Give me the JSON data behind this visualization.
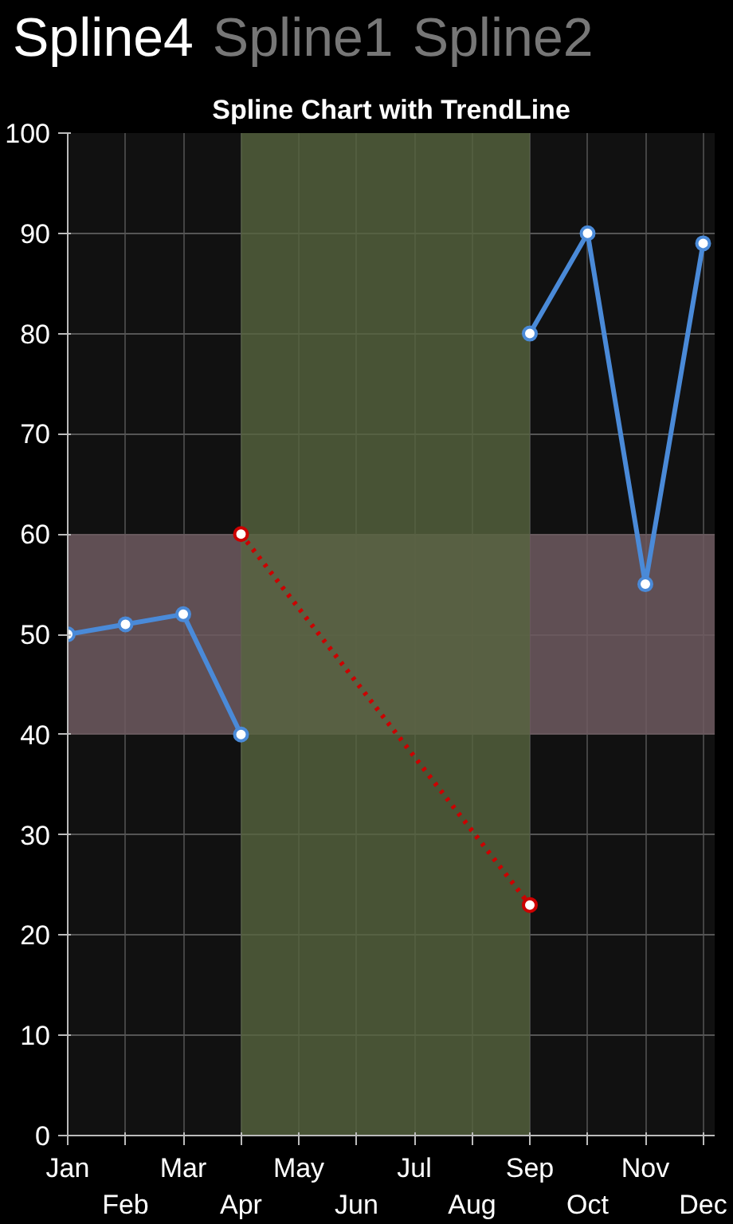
{
  "chart_data": {
    "type": "line",
    "title": "Spline Chart with TrendLine",
    "annotations": [
      "Spline4",
      "Spline1",
      "Spline2"
    ],
    "categories": [
      "Jan",
      "Feb",
      "Mar",
      "Apr",
      "May",
      "Jun",
      "Jul",
      "Aug",
      "Sep",
      "Oct",
      "Nov",
      "Dec"
    ],
    "series": [
      {
        "color": "#4a8ad8",
        "values": [
          50,
          51,
          52,
          40,
          null,
          null,
          null,
          null,
          80,
          90,
          55,
          89
        ]
      },
      {
        "color": "#cc0000",
        "line_style": "dotted",
        "values": [
          null,
          null,
          null,
          60,
          null,
          null,
          null,
          null,
          23,
          null,
          null,
          null
        ]
      }
    ],
    "ylim": [
      0,
      100
    ],
    "yticks": [
      0,
      10,
      20,
      30,
      40,
      50,
      60,
      70,
      80,
      90,
      100
    ],
    "bands": [
      {
        "axis": "y",
        "from": 40,
        "to": 60,
        "color": "#6e5a60"
      },
      {
        "axis": "x",
        "from": "Apr",
        "to": "Sep",
        "color": "#56643e"
      }
    ],
    "grid": true,
    "marker": "circle"
  }
}
